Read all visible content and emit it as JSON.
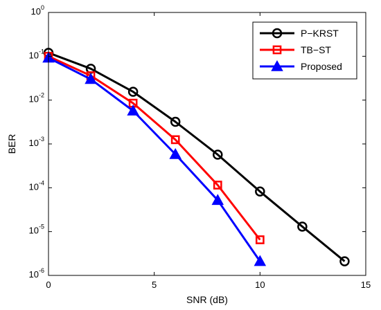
{
  "chart_data": {
    "type": "line",
    "xlabel": "SNR (dB)",
    "ylabel": "BER",
    "xlim": [
      0,
      15
    ],
    "ylim": [
      1e-06,
      1
    ],
    "yscale": "log",
    "grid": false,
    "legend_position": "top-right",
    "x_ticks": [
      {
        "value": 0,
        "label": "0"
      },
      {
        "value": 5,
        "label": "5"
      },
      {
        "value": 10,
        "label": "10"
      },
      {
        "value": 15,
        "label": "15"
      }
    ],
    "y_ticks": [
      {
        "value": 1e-06,
        "base": "10",
        "exp": "-6"
      },
      {
        "value": 1e-05,
        "base": "10",
        "exp": "-5"
      },
      {
        "value": 0.0001,
        "base": "10",
        "exp": "-4"
      },
      {
        "value": 0.001,
        "base": "10",
        "exp": "-3"
      },
      {
        "value": 0.01,
        "base": "10",
        "exp": "-2"
      },
      {
        "value": 0.1,
        "base": "10",
        "exp": "-1"
      },
      {
        "value": 1,
        "base": "10",
        "exp": "0"
      }
    ],
    "series": [
      {
        "name": "P−KRST",
        "color": "#000000",
        "marker": "circle",
        "x": [
          0,
          2,
          4,
          6,
          8,
          10,
          12,
          14
        ],
        "y": [
          0.12,
          0.052,
          0.0155,
          0.0032,
          0.00057,
          8.2e-05,
          1.3e-05,
          2.1e-06
        ]
      },
      {
        "name": "TB−ST",
        "color": "#ff0000",
        "marker": "square",
        "x": [
          0,
          2,
          4,
          6,
          8,
          10
        ],
        "y": [
          0.1,
          0.036,
          0.0085,
          0.00125,
          0.000115,
          6.5e-06
        ]
      },
      {
        "name": "Proposed",
        "color": "#0000ff",
        "marker": "triangle",
        "x": [
          0,
          2,
          4,
          6,
          8,
          10
        ],
        "y": [
          0.092,
          0.03,
          0.0057,
          0.00058,
          5.2e-05,
          2.1e-06
        ]
      }
    ]
  }
}
